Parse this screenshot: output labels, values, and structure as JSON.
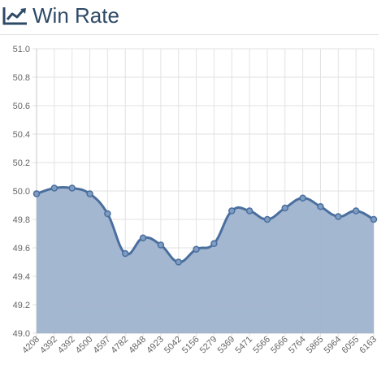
{
  "header": {
    "title": "Win Rate",
    "icon": "line-chart-icon"
  },
  "chart_data": {
    "type": "area",
    "title": "Win Rate",
    "xlabel": "",
    "ylabel": "",
    "ylim": [
      49.0,
      51.0
    ],
    "y_ticks": [
      "51.0",
      "50.8",
      "50.6",
      "50.4",
      "50.2",
      "50.0",
      "49.8",
      "49.6",
      "49.4",
      "49.2",
      "49.0"
    ],
    "grid": true,
    "legend": "none",
    "categories": [
      "4208",
      "4392",
      "4392",
      "4500",
      "4597",
      "4782",
      "4848",
      "4923",
      "5042",
      "5156",
      "5279",
      "5369",
      "5471",
      "5566",
      "5666",
      "5764",
      "5865",
      "5964",
      "6055",
      "6163"
    ],
    "series": [
      {
        "values": [
          49.98,
          50.02,
          50.02,
          49.98,
          49.84,
          49.56,
          49.67,
          49.62,
          49.5,
          49.59,
          49.63,
          49.86,
          49.86,
          49.8,
          49.88,
          49.95,
          49.89,
          49.82,
          49.86,
          49.8
        ],
        "color": "#4a6f9e",
        "fill": "#9fb3cf"
      }
    ]
  }
}
